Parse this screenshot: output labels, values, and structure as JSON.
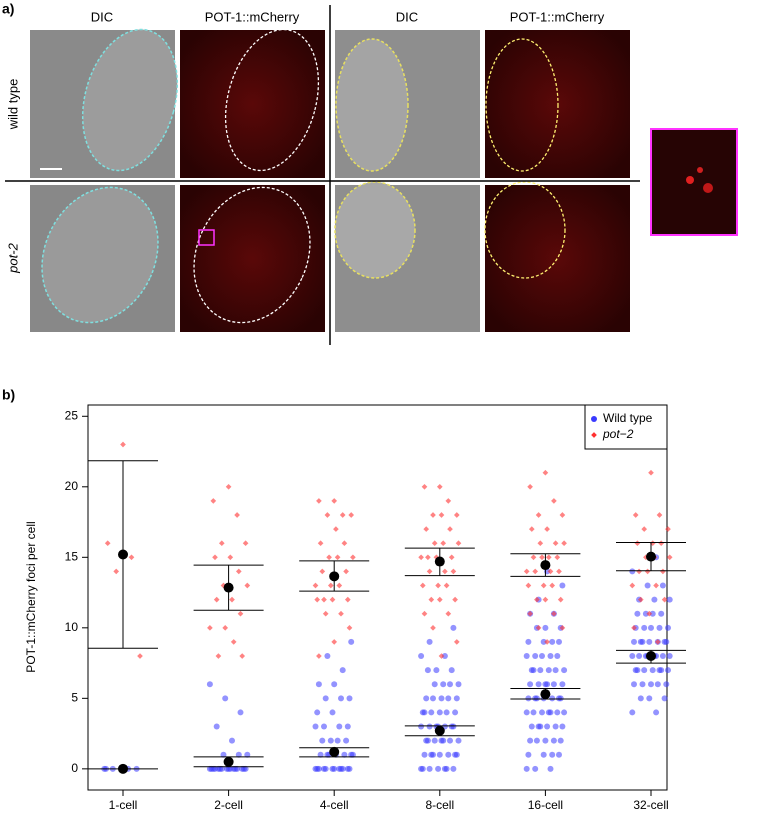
{
  "panel_a": {
    "label": "a)",
    "column_headers": [
      "DIC",
      "POT-1::mCherry",
      "DIC",
      "POT-1::mCherry"
    ],
    "row_labels": [
      "wild type",
      "pot-2"
    ]
  },
  "panel_b_label": "b)",
  "chart_data": {
    "type": "strip",
    "ylabel": "POT-1::mCherry foci per cell",
    "categories": [
      "1-cell",
      "2-cell",
      "4-cell",
      "8-cell",
      "16-cell",
      "32-cell"
    ],
    "ylim": [
      -1.5,
      25.8
    ],
    "yticks": [
      0,
      5,
      10,
      15,
      20,
      25
    ],
    "legend": "top right",
    "series": [
      {
        "name": "Wild type",
        "color": "#3a3aff",
        "values": [
          [
            0,
            0,
            0,
            0,
            0,
            0
          ],
          [
            0,
            0,
            0,
            0,
            0,
            0,
            0,
            0,
            0,
            0,
            0,
            0,
            0,
            0,
            0,
            0,
            1,
            1,
            1,
            2,
            3,
            4,
            5,
            6
          ],
          [
            0,
            0,
            0,
            0,
            0,
            0,
            0,
            0,
            0,
            0,
            0,
            0,
            1,
            1,
            1,
            1,
            1,
            1,
            1,
            2,
            2,
            2,
            2,
            3,
            3,
            3,
            3,
            4,
            4,
            5,
            5,
            5,
            6,
            6,
            7,
            8,
            9
          ],
          [
            0,
            0,
            0,
            0,
            0,
            0,
            0,
            1,
            1,
            1,
            1,
            1,
            1,
            1,
            2,
            2,
            2,
            2,
            2,
            2,
            2,
            3,
            3,
            3,
            3,
            3,
            3,
            3,
            4,
            4,
            4,
            4,
            4,
            4,
            5,
            5,
            5,
            5,
            5,
            6,
            6,
            6,
            6,
            7,
            7,
            7,
            8,
            8,
            9,
            10
          ],
          [
            0,
            0,
            0,
            1,
            1,
            1,
            1,
            2,
            2,
            2,
            2,
            2,
            3,
            3,
            3,
            3,
            3,
            3,
            4,
            4,
            4,
            4,
            4,
            4,
            4,
            5,
            5,
            5,
            5,
            5,
            5,
            5,
            6,
            6,
            6,
            6,
            6,
            6,
            7,
            7,
            7,
            7,
            7,
            7,
            8,
            8,
            8,
            8,
            8,
            9,
            9,
            9,
            9,
            10,
            10,
            10,
            11,
            11,
            12,
            13,
            14
          ],
          [
            4,
            4,
            5,
            5,
            5,
            6,
            6,
            6,
            6,
            6,
            7,
            7,
            7,
            7,
            7,
            7,
            7,
            8,
            8,
            8,
            8,
            8,
            8,
            8,
            8,
            9,
            9,
            9,
            9,
            9,
            9,
            9,
            10,
            10,
            10,
            10,
            10,
            11,
            11,
            11,
            11,
            12,
            12,
            12,
            13,
            13,
            14,
            15
          ]
        ],
        "means": [
          0,
          0.5,
          1.2,
          2.7,
          5.3,
          8.0
        ],
        "errors": [
          [
            0,
            0
          ],
          [
            0.15,
            0.85
          ],
          [
            0.85,
            1.5
          ],
          [
            2.35,
            3.05
          ],
          [
            4.95,
            5.7
          ],
          [
            7.5,
            8.4
          ]
        ]
      },
      {
        "name": "pot−2",
        "color": "#ff3030",
        "values": [
          [
            23,
            16,
            15,
            14,
            8
          ],
          [
            20,
            19,
            18,
            16,
            16,
            15,
            15,
            14,
            13,
            13,
            12,
            12,
            11,
            10,
            10,
            9,
            8,
            8
          ],
          [
            19,
            19,
            18,
            18,
            18,
            17,
            16,
            16,
            15,
            15,
            15,
            14,
            14,
            13,
            13,
            13,
            12,
            12,
            12,
            12,
            11,
            11,
            10,
            9,
            8
          ],
          [
            20,
            20,
            19,
            18,
            18,
            18,
            17,
            17,
            16,
            16,
            16,
            15,
            15,
            15,
            15,
            14,
            14,
            14,
            13,
            13,
            13,
            12,
            12,
            12,
            11,
            11,
            10,
            9,
            8
          ],
          [
            21,
            20,
            19,
            18,
            18,
            17,
            17,
            16,
            16,
            16,
            15,
            15,
            15,
            15,
            14,
            14,
            14,
            14,
            13,
            13,
            13,
            12,
            12,
            12,
            11,
            11,
            10,
            10,
            9
          ],
          [
            21,
            18,
            18,
            17,
            17,
            16,
            16,
            16,
            15,
            15,
            15,
            14,
            14,
            14,
            13,
            13,
            12,
            12,
            11,
            10,
            9
          ]
        ],
        "means": [
          15.2,
          12.85,
          13.65,
          14.7,
          14.45,
          15.05
        ],
        "errors": [
          [
            8.55,
            21.85
          ],
          [
            11.25,
            14.45
          ],
          [
            12.6,
            14.75
          ],
          [
            13.7,
            15.65
          ],
          [
            13.65,
            15.25
          ],
          [
            14.05,
            16.05
          ]
        ]
      }
    ]
  }
}
